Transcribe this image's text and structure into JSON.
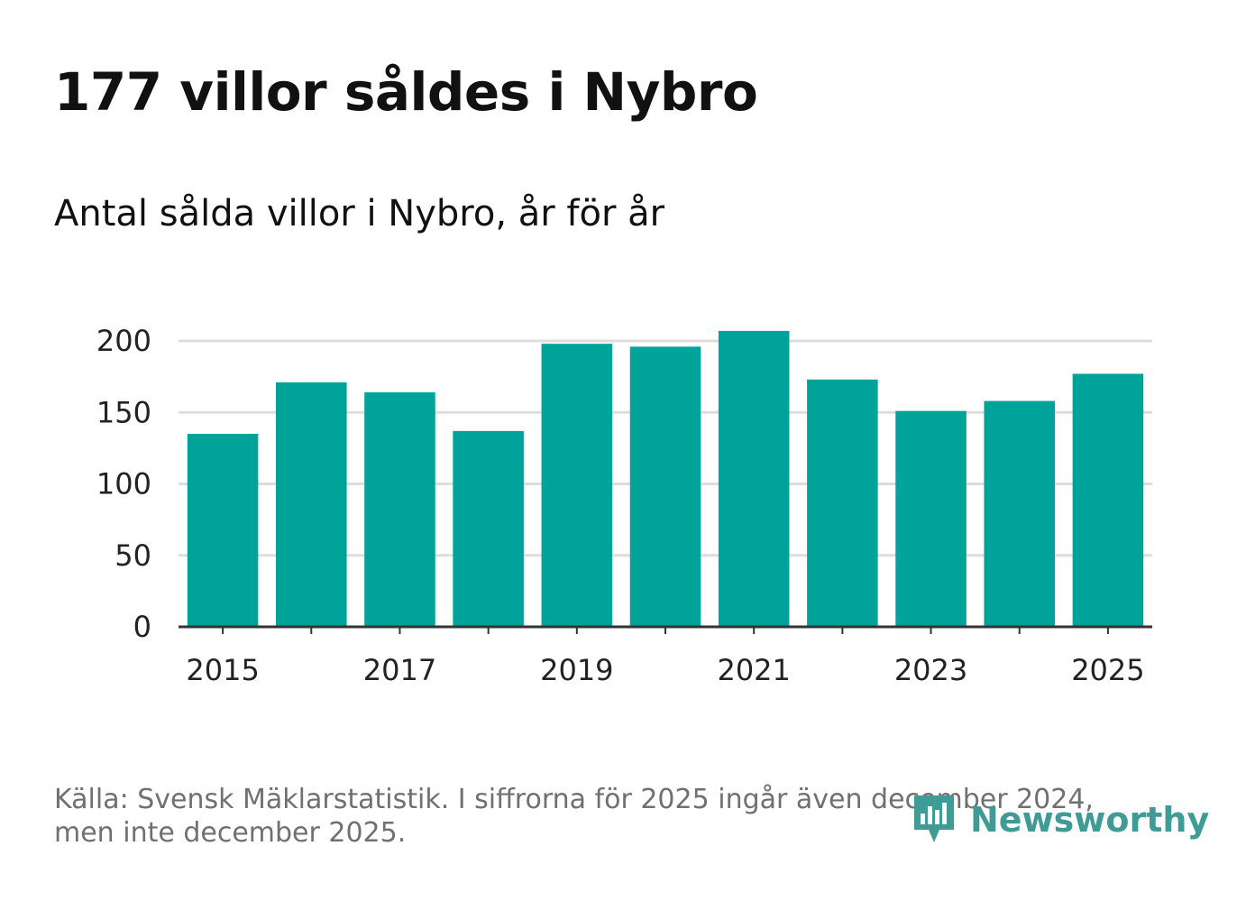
{
  "title": "177 villor såldes i Nybro",
  "subtitle": "Antal sålda villor i Nybro, år för år",
  "source_line1": "Källa: Svensk Mäklarstatistik. I siffrorna för 2025 ingår även december 2024,",
  "source_line2": "men inte december 2025.",
  "brand": "Newsworthy",
  "colors": {
    "bar": "#00a39a",
    "grid": "#dddddd",
    "axis": "#333333",
    "brand": "#3f9b95"
  },
  "chart_data": {
    "type": "bar",
    "title": "177 villor såldes i Nybro",
    "subtitle": "Antal sålda villor i Nybro, år för år",
    "xlabel": "",
    "ylabel": "",
    "ylim": [
      0,
      200
    ],
    "yticks": [
      0,
      50,
      100,
      150,
      200
    ],
    "categories": [
      "2015",
      "2016",
      "2017",
      "2018",
      "2019",
      "2020",
      "2021",
      "2022",
      "2023",
      "2024",
      "2025"
    ],
    "xtick_labels": [
      "2015",
      "2017",
      "2019",
      "2021",
      "2023",
      "2025"
    ],
    "values": [
      135,
      171,
      164,
      137,
      198,
      196,
      207,
      173,
      151,
      158,
      177
    ],
    "grid": true
  }
}
